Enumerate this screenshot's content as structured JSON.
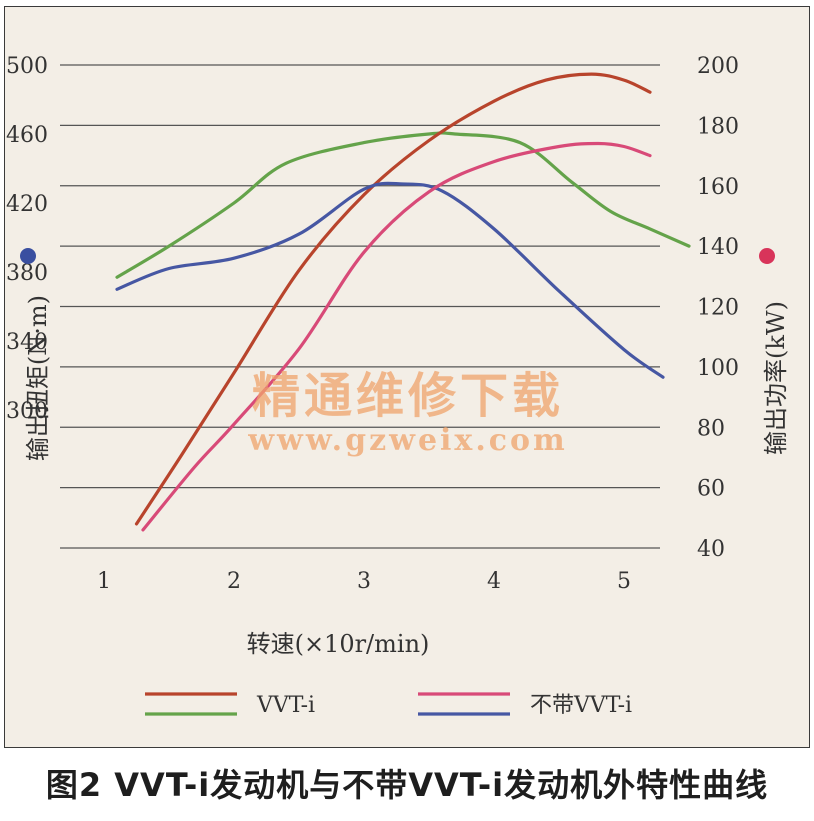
{
  "chart_data": {
    "type": "line",
    "x_axis": {
      "label": "转速(×10r/min)",
      "ticks": [
        1,
        2,
        3,
        4,
        5
      ],
      "range": [
        0.7,
        5.6
      ]
    },
    "y_left": {
      "label": "输出扭矩(N·m)",
      "ticks": [
        300,
        340,
        380,
        420,
        460,
        500
      ],
      "range": [
        220,
        500
      ],
      "marker_color": "#3a4fa0"
    },
    "y_right": {
      "label": "输出功率(kW)",
      "ticks": [
        40,
        60,
        80,
        100,
        120,
        140,
        160,
        180,
        200
      ],
      "range": [
        40,
        200
      ],
      "marker_color": "#d8345a"
    },
    "grid": true,
    "legend": {
      "placement": "bottom",
      "items": [
        {
          "label": "VVT-i",
          "colors": [
            "#b8442c",
            "#64a34a"
          ]
        },
        {
          "label": "不带VVT-i",
          "colors": [
            "#d84a78",
            "#4657a3"
          ]
        }
      ]
    },
    "series": [
      {
        "axis": "left",
        "color": "#64a34a",
        "group": "VVT-i",
        "x": [
          1.1,
          1.5,
          2.0,
          2.4,
          3.0,
          3.5,
          3.7,
          4.2,
          4.6,
          4.9,
          5.2,
          5.5
        ],
        "y": [
          377,
          395,
          420,
          443,
          455,
          460,
          460,
          455,
          432,
          415,
          405,
          395
        ]
      },
      {
        "axis": "right",
        "color": "#b8442c",
        "group": "VVT-i",
        "x": [
          1.25,
          1.6,
          2.0,
          2.5,
          3.0,
          3.5,
          4.0,
          4.4,
          4.75,
          5.0,
          5.2
        ],
        "y": [
          48,
          71,
          98,
          132,
          157,
          175,
          188,
          195,
          197,
          195,
          191
        ]
      },
      {
        "axis": "left",
        "color": "#4657a3",
        "group": "不带VVT-i",
        "x": [
          1.1,
          1.5,
          2.0,
          2.5,
          3.0,
          3.3,
          3.6,
          4.0,
          4.5,
          5.0,
          5.3
        ],
        "y": [
          370,
          382,
          388,
          402,
          428,
          431,
          427,
          405,
          369,
          335,
          319
        ]
      },
      {
        "axis": "right",
        "color": "#d84a78",
        "group": "不带VVT-i",
        "x": [
          1.3,
          1.7,
          2.0,
          2.5,
          3.0,
          3.5,
          4.0,
          4.5,
          4.8,
          5.0,
          5.2
        ],
        "y": [
          46,
          67,
          81,
          106,
          138,
          158,
          168,
          173,
          174,
          173,
          170
        ]
      }
    ]
  },
  "watermark": {
    "line1": "精通维修下载",
    "line2": "www.gzweix.com"
  },
  "caption": "图2 VVT-i发动机与不带VVT-i发动机外特性曲线"
}
